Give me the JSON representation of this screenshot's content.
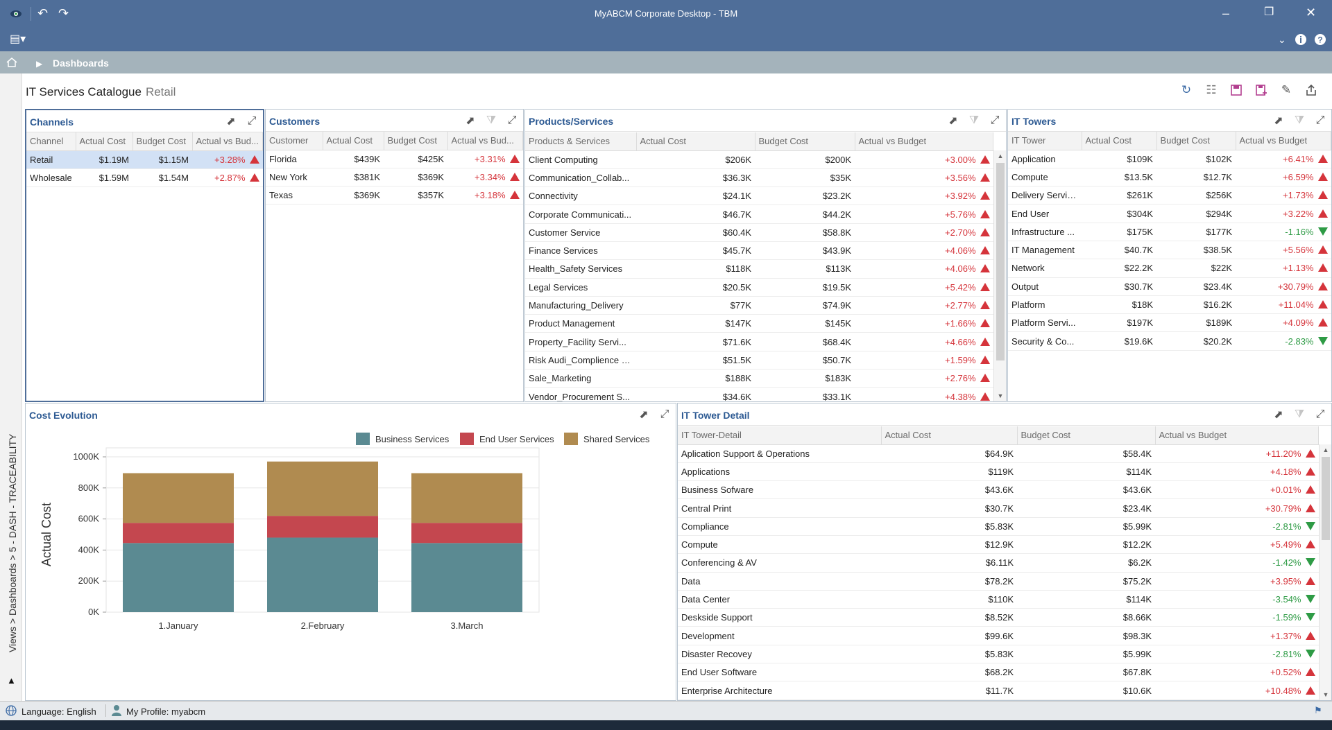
{
  "window": {
    "title": "MyABCM Corporate Desktop - TBM"
  },
  "breadcrumb": {
    "label": "Dashboards"
  },
  "sidebar": {
    "path": "Views > Dashboards > 5 - DASH - TRACEABILITY"
  },
  "page": {
    "title": "IT Services Catalogue",
    "filter": "Retail"
  },
  "toolbar_icons": [
    "refresh-icon",
    "grid-icon",
    "save-icon",
    "save-as-icon",
    "edit-icon",
    "export-icon"
  ],
  "channels": {
    "title": "Channels",
    "columns": [
      "Channel",
      "Actual Cost",
      "Budget Cost",
      "Actual vs Bud..."
    ],
    "rows": [
      {
        "name": "Retail",
        "actual": "$1.19M",
        "budget": "$1.15M",
        "delta": "+3.28%",
        "trend": "up"
      },
      {
        "name": "Wholesale",
        "actual": "$1.59M",
        "budget": "$1.54M",
        "delta": "+2.87%",
        "trend": "up"
      }
    ]
  },
  "customers": {
    "title": "Customers",
    "columns": [
      "Customer",
      "Actual Cost",
      "Budget Cost",
      "Actual vs Bud..."
    ],
    "rows": [
      {
        "name": "Florida",
        "actual": "$439K",
        "budget": "$425K",
        "delta": "+3.31%",
        "trend": "up"
      },
      {
        "name": "New York",
        "actual": "$381K",
        "budget": "$369K",
        "delta": "+3.34%",
        "trend": "up"
      },
      {
        "name": "Texas",
        "actual": "$369K",
        "budget": "$357K",
        "delta": "+3.18%",
        "trend": "up"
      }
    ]
  },
  "products": {
    "title": "Products/Services",
    "columns": [
      "Products & Services",
      "Actual Cost",
      "Budget Cost",
      "Actual vs Budget"
    ],
    "rows": [
      {
        "name": "Client Computing",
        "actual": "$206K",
        "budget": "$200K",
        "delta": "+3.00%",
        "trend": "up"
      },
      {
        "name": "Communication_Collab...",
        "actual": "$36.3K",
        "budget": "$35K",
        "delta": "+3.56%",
        "trend": "up"
      },
      {
        "name": "Connectivity",
        "actual": "$24.1K",
        "budget": "$23.2K",
        "delta": "+3.92%",
        "trend": "up"
      },
      {
        "name": "Corporate Communicati...",
        "actual": "$46.7K",
        "budget": "$44.2K",
        "delta": "+5.76%",
        "trend": "up"
      },
      {
        "name": "Customer Service",
        "actual": "$60.4K",
        "budget": "$58.8K",
        "delta": "+2.70%",
        "trend": "up"
      },
      {
        "name": "Finance Services",
        "actual": "$45.7K",
        "budget": "$43.9K",
        "delta": "+4.06%",
        "trend": "up"
      },
      {
        "name": "Health_Safety Services",
        "actual": "$118K",
        "budget": "$113K",
        "delta": "+4.06%",
        "trend": "up"
      },
      {
        "name": "Legal Services",
        "actual": "$20.5K",
        "budget": "$19.5K",
        "delta": "+5.42%",
        "trend": "up"
      },
      {
        "name": "Manufacturing_Delivery",
        "actual": "$77K",
        "budget": "$74.9K",
        "delta": "+2.77%",
        "trend": "up"
      },
      {
        "name": "Product Management",
        "actual": "$147K",
        "budget": "$145K",
        "delta": "+1.66%",
        "trend": "up"
      },
      {
        "name": "Property_Facility Servi...",
        "actual": "$71.6K",
        "budget": "$68.4K",
        "delta": "+4.66%",
        "trend": "up"
      },
      {
        "name": "Risk Audi_Complience S...",
        "actual": "$51.5K",
        "budget": "$50.7K",
        "delta": "+1.59%",
        "trend": "up"
      },
      {
        "name": "Sale_Marketing",
        "actual": "$188K",
        "budget": "$183K",
        "delta": "+2.76%",
        "trend": "up"
      },
      {
        "name": "Vendor_Procurement S...",
        "actual": "$34.6K",
        "budget": "$33.1K",
        "delta": "+4.38%",
        "trend": "up"
      }
    ]
  },
  "towers": {
    "title": "IT Towers",
    "columns": [
      "IT Tower",
      "Actual Cost",
      "Budget Cost",
      "Actual vs Budget"
    ],
    "rows": [
      {
        "name": "Application",
        "actual": "$109K",
        "budget": "$102K",
        "delta": "+6.41%",
        "trend": "up"
      },
      {
        "name": "Compute",
        "actual": "$13.5K",
        "budget": "$12.7K",
        "delta": "+6.59%",
        "trend": "up"
      },
      {
        "name": "Delivery Servic...",
        "actual": "$261K",
        "budget": "$256K",
        "delta": "+1.73%",
        "trend": "up"
      },
      {
        "name": "End User",
        "actual": "$304K",
        "budget": "$294K",
        "delta": "+3.22%",
        "trend": "up"
      },
      {
        "name": "Infrastructure ...",
        "actual": "$175K",
        "budget": "$177K",
        "delta": "-1.16%",
        "trend": "down"
      },
      {
        "name": "IT Management",
        "actual": "$40.7K",
        "budget": "$38.5K",
        "delta": "+5.56%",
        "trend": "up"
      },
      {
        "name": "Network",
        "actual": "$22.2K",
        "budget": "$22K",
        "delta": "+1.13%",
        "trend": "up"
      },
      {
        "name": "Output",
        "actual": "$30.7K",
        "budget": "$23.4K",
        "delta": "+30.79%",
        "trend": "up"
      },
      {
        "name": "Platform",
        "actual": "$18K",
        "budget": "$16.2K",
        "delta": "+11.04%",
        "trend": "up"
      },
      {
        "name": "Platform Servi...",
        "actual": "$197K",
        "budget": "$189K",
        "delta": "+4.09%",
        "trend": "up"
      },
      {
        "name": "Security & Co...",
        "actual": "$19.6K",
        "budget": "$20.2K",
        "delta": "-2.83%",
        "trend": "down"
      }
    ]
  },
  "tower_detail": {
    "title": "IT Tower Detail",
    "columns": [
      "IT Tower-Detail",
      "Actual Cost",
      "Budget Cost",
      "Actual vs Budget"
    ],
    "rows": [
      {
        "name": "Aplication Support & Operations",
        "actual": "$64.9K",
        "budget": "$58.4K",
        "delta": "+11.20%",
        "trend": "up"
      },
      {
        "name": "Applications",
        "actual": "$119K",
        "budget": "$114K",
        "delta": "+4.18%",
        "trend": "up"
      },
      {
        "name": "Business Sofware",
        "actual": "$43.6K",
        "budget": "$43.6K",
        "delta": "+0.01%",
        "trend": "up"
      },
      {
        "name": "Central Print",
        "actual": "$30.7K",
        "budget": "$23.4K",
        "delta": "+30.79%",
        "trend": "up"
      },
      {
        "name": "Compliance",
        "actual": "$5.83K",
        "budget": "$5.99K",
        "delta": "-2.81%",
        "trend": "down"
      },
      {
        "name": "Compute",
        "actual": "$12.9K",
        "budget": "$12.2K",
        "delta": "+5.49%",
        "trend": "up"
      },
      {
        "name": "Conferencing & AV",
        "actual": "$6.11K",
        "budget": "$6.2K",
        "delta": "-1.42%",
        "trend": "down"
      },
      {
        "name": "Data",
        "actual": "$78.2K",
        "budget": "$75.2K",
        "delta": "+3.95%",
        "trend": "up"
      },
      {
        "name": "Data Center",
        "actual": "$110K",
        "budget": "$114K",
        "delta": "-3.54%",
        "trend": "down"
      },
      {
        "name": "Deskside Support",
        "actual": "$8.52K",
        "budget": "$8.66K",
        "delta": "-1.59%",
        "trend": "down"
      },
      {
        "name": "Development",
        "actual": "$99.6K",
        "budget": "$98.3K",
        "delta": "+1.37%",
        "trend": "up"
      },
      {
        "name": "Disaster Recovey",
        "actual": "$5.83K",
        "budget": "$5.99K",
        "delta": "-2.81%",
        "trend": "down"
      },
      {
        "name": "End User Software",
        "actual": "$68.2K",
        "budget": "$67.8K",
        "delta": "+0.52%",
        "trend": "up"
      },
      {
        "name": "Enterprise Architecture",
        "actual": "$11.7K",
        "budget": "$10.6K",
        "delta": "+10.48%",
        "trend": "up"
      }
    ]
  },
  "cost_evolution": {
    "title": "Cost Evolution"
  },
  "chart_data": {
    "type": "bar",
    "stacked": true,
    "categories": [
      "1.January",
      "2.February",
      "3.March"
    ],
    "series": [
      {
        "name": "Business Services",
        "color": "#5b8a92",
        "values": [
          445000,
          480000,
          445000
        ]
      },
      {
        "name": "End User Services",
        "color": "#c4474f",
        "values": [
          130000,
          140000,
          130000
        ]
      },
      {
        "name": "Shared Services",
        "color": "#b08b50",
        "values": [
          320000,
          350000,
          320000
        ]
      }
    ],
    "title": "",
    "xlabel": "",
    "ylabel": "Actual Cost",
    "ylim": [
      0,
      1000000
    ],
    "yticks": [
      0,
      200000,
      400000,
      600000,
      800000,
      1000000
    ],
    "ytick_labels": [
      "0K",
      "200K",
      "400K",
      "600K",
      "800K",
      "1000K"
    ],
    "grid": true,
    "legend": "top-right"
  },
  "status": {
    "language": "Language: English",
    "profile": "My Profile: myabcm"
  }
}
